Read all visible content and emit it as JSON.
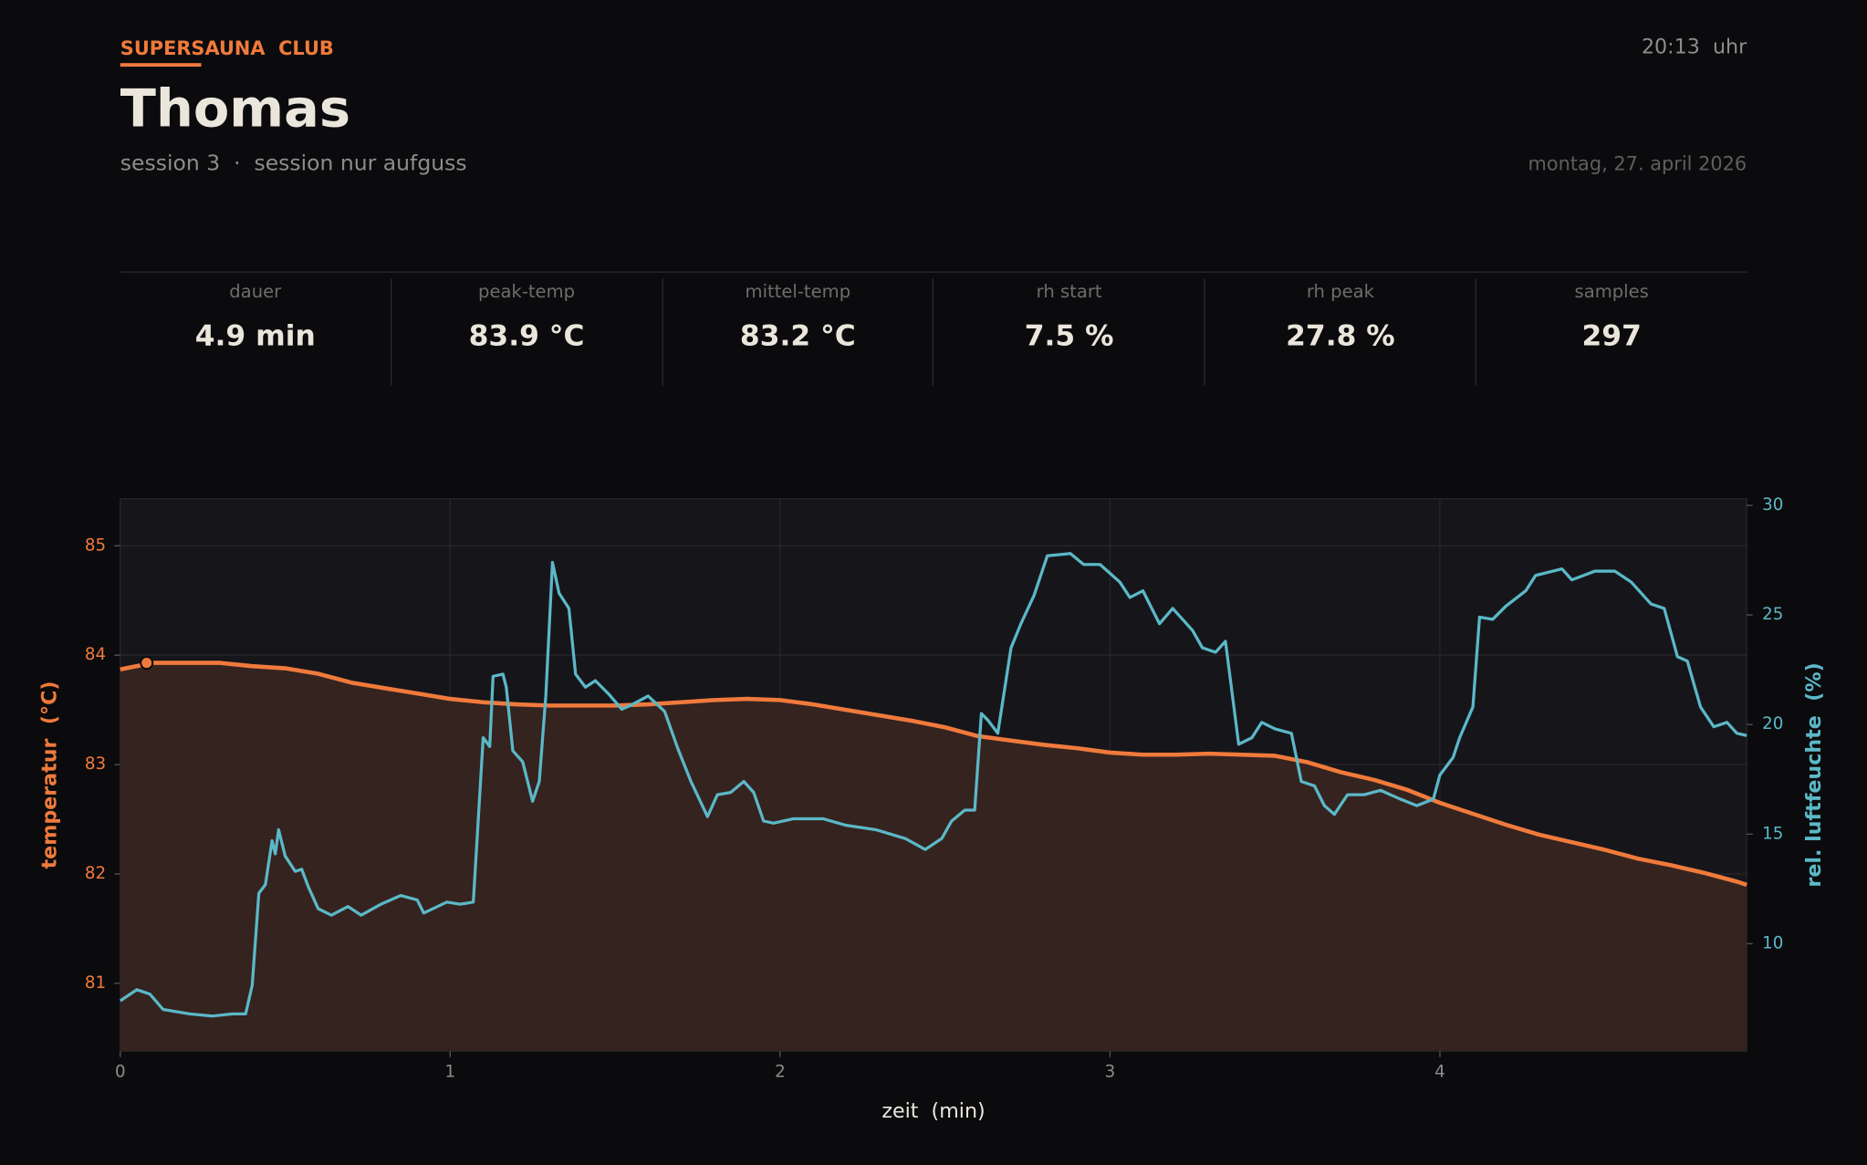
{
  "header": {
    "brand": "SUPERSAUNA  CLUB",
    "name": "Thomas",
    "subtitle": "session 3  ·  session nur aufguss",
    "time": "20:13  uhr",
    "date": "montag, 27. april 2026"
  },
  "stats": [
    {
      "label": "dauer",
      "value": "4.9 min"
    },
    {
      "label": "peak-temp",
      "value": "83.9 °C"
    },
    {
      "label": "mittel-temp",
      "value": "83.2 °C"
    },
    {
      "label": "rh start",
      "value": "7.5 %"
    },
    {
      "label": "rh peak",
      "value": "27.8 %"
    },
    {
      "label": "samples",
      "value": "297"
    }
  ],
  "chart_data": {
    "type": "line",
    "xlabel": "zeit  (min)",
    "ylabel": "temperatur  (°C)",
    "y2label": "rel. luftfeuchte  (%)",
    "xlim": [
      0,
      4.93
    ],
    "xticks": [
      0,
      1,
      2,
      3,
      4
    ],
    "ylim": [
      80.38,
      85.43
    ],
    "yticks": [
      81,
      82,
      83,
      84,
      85
    ],
    "y2lim": [
      5.1,
      30.3
    ],
    "y2ticks": [
      10,
      15,
      20,
      25,
      30
    ],
    "grid": true,
    "series": [
      {
        "name": "temperatur",
        "color": "#f07a3c",
        "fill": "#35231f",
        "x": [
          0,
          0.1,
          0.2,
          0.3,
          0.4,
          0.5,
          0.6,
          0.7,
          0.8,
          0.9,
          1.0,
          1.1,
          1.2,
          1.3,
          1.4,
          1.5,
          1.6,
          1.7,
          1.8,
          1.9,
          2.0,
          2.1,
          2.2,
          2.3,
          2.4,
          2.5,
          2.6,
          2.7,
          2.8,
          2.9,
          3.0,
          3.1,
          3.2,
          3.3,
          3.4,
          3.5,
          3.6,
          3.7,
          3.8,
          3.9,
          4.0,
          4.1,
          4.2,
          4.3,
          4.4,
          4.5,
          4.6,
          4.7,
          4.8,
          4.9,
          4.93
        ],
        "values": [
          83.87,
          83.93,
          83.93,
          83.93,
          83.9,
          83.88,
          83.83,
          83.75,
          83.7,
          83.65,
          83.6,
          83.57,
          83.55,
          83.54,
          83.54,
          83.54,
          83.55,
          83.57,
          83.59,
          83.6,
          83.59,
          83.55,
          83.5,
          83.45,
          83.4,
          83.34,
          83.26,
          83.22,
          83.18,
          83.15,
          83.11,
          83.09,
          83.09,
          83.1,
          83.09,
          83.08,
          83.02,
          82.93,
          82.86,
          82.77,
          82.65,
          82.55,
          82.45,
          82.36,
          82.29,
          82.22,
          82.14,
          82.08,
          82.01,
          81.93,
          81.9
        ]
      },
      {
        "name": "rel. luftfeuchte",
        "color": "#5bb8c8",
        "axis": "y2",
        "x": [
          0,
          0.05,
          0.09,
          0.13,
          0.21,
          0.28,
          0.34,
          0.38,
          0.4,
          0.42,
          0.44,
          0.46,
          0.47,
          0.48,
          0.5,
          0.53,
          0.55,
          0.57,
          0.6,
          0.64,
          0.69,
          0.73,
          0.79,
          0.85,
          0.9,
          0.92,
          0.99,
          1.03,
          1.07,
          1.1,
          1.12,
          1.13,
          1.16,
          1.17,
          1.19,
          1.22,
          1.25,
          1.27,
          1.29,
          1.31,
          1.33,
          1.36,
          1.38,
          1.41,
          1.44,
          1.48,
          1.52,
          1.55,
          1.6,
          1.65,
          1.69,
          1.73,
          1.78,
          1.81,
          1.85,
          1.89,
          1.92,
          1.95,
          1.98,
          2.04,
          2.13,
          2.2,
          2.29,
          2.38,
          2.44,
          2.49,
          2.52,
          2.56,
          2.59,
          2.61,
          2.63,
          2.66,
          2.7,
          2.73,
          2.77,
          2.81,
          2.88,
          2.92,
          2.97,
          3.03,
          3.06,
          3.1,
          3.15,
          3.19,
          3.25,
          3.28,
          3.32,
          3.35,
          3.39,
          3.43,
          3.46,
          3.5,
          3.55,
          3.58,
          3.62,
          3.65,
          3.68,
          3.72,
          3.77,
          3.82,
          3.88,
          3.93,
          3.98,
          4.0,
          4.04,
          4.06,
          4.1,
          4.12,
          4.16,
          4.2,
          4.26,
          4.29,
          4.37,
          4.4,
          4.47,
          4.53,
          4.58,
          4.64,
          4.68,
          4.72,
          4.75,
          4.79,
          4.83,
          4.87,
          4.9,
          4.93
        ],
        "values": [
          7.4,
          7.9,
          7.7,
          7.0,
          6.8,
          6.7,
          6.8,
          6.8,
          8.1,
          12.3,
          12.7,
          14.7,
          14.1,
          15.2,
          14.0,
          13.3,
          13.4,
          12.6,
          11.6,
          11.3,
          11.7,
          11.3,
          11.8,
          12.2,
          12.0,
          11.4,
          11.9,
          11.8,
          11.9,
          19.4,
          19.0,
          22.2,
          22.3,
          21.7,
          18.8,
          18.3,
          16.5,
          17.4,
          21.3,
          27.4,
          26.0,
          25.3,
          22.3,
          21.7,
          22.0,
          21.4,
          20.7,
          20.9,
          21.3,
          20.6,
          18.9,
          17.4,
          15.8,
          16.8,
          16.9,
          17.4,
          16.9,
          15.6,
          15.5,
          15.7,
          15.7,
          15.4,
          15.2,
          14.8,
          14.3,
          14.8,
          15.6,
          16.1,
          16.1,
          20.5,
          20.2,
          19.6,
          23.5,
          24.6,
          25.9,
          27.7,
          27.8,
          27.3,
          27.3,
          26.5,
          25.8,
          26.1,
          24.6,
          25.3,
          24.3,
          23.5,
          23.3,
          23.8,
          19.1,
          19.4,
          20.1,
          19.8,
          19.6,
          17.4,
          17.2,
          16.3,
          15.9,
          16.8,
          16.8,
          17.0,
          16.6,
          16.3,
          16.6,
          17.7,
          18.5,
          19.4,
          20.8,
          24.9,
          24.8,
          25.4,
          26.1,
          26.8,
          27.1,
          26.6,
          27.0,
          27.0,
          26.5,
          25.5,
          25.3,
          23.1,
          22.9,
          20.8,
          19.9,
          20.1,
          19.6,
          19.5
        ]
      }
    ],
    "peak": {
      "x": 0.08,
      "value": 83.93
    }
  }
}
